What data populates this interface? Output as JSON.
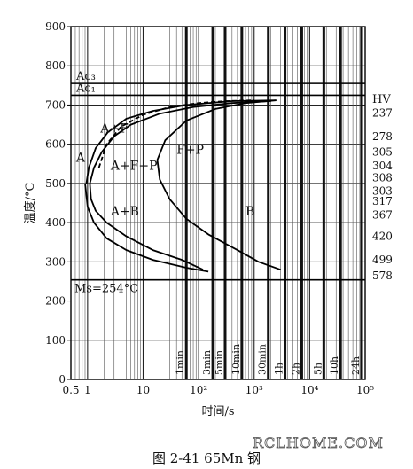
{
  "chart_data": {
    "type": "line",
    "title": "",
    "xlabel": "时间/s",
    "ylabel": "温度/°C",
    "x_scale": "log",
    "xlim": [
      0.5,
      100000
    ],
    "ylim": [
      0,
      900
    ],
    "x_ticks": [
      {
        "value": 0.5,
        "label": "0.5"
      },
      {
        "value": 1,
        "label": "1"
      },
      {
        "value": 10,
        "label": "10"
      },
      {
        "value": 100,
        "label": "10²"
      },
      {
        "value": 1000,
        "label": "10³"
      },
      {
        "value": 10000,
        "label": "10⁴"
      },
      {
        "value": 100000,
        "label": "10⁵"
      }
    ],
    "y_ticks": [
      0,
      100,
      200,
      300,
      400,
      500,
      600,
      700,
      800,
      900
    ],
    "time_markers": [
      {
        "label": "1min",
        "value": 60
      },
      {
        "label": "3min",
        "value": 180
      },
      {
        "label": "5min",
        "value": 300
      },
      {
        "label": "10min",
        "value": 600
      },
      {
        "label": "30min",
        "value": 1800
      },
      {
        "label": "1h",
        "value": 3600
      },
      {
        "label": "2h",
        "value": 7200
      },
      {
        "label": "5h",
        "value": 18000
      },
      {
        "label": "10h",
        "value": 36000
      },
      {
        "label": "24h",
        "value": 86400
      }
    ],
    "horizontal_lines": [
      {
        "label": "Ac₃",
        "value": 755
      },
      {
        "label": "Ac₁",
        "value": 725
      },
      {
        "label": "M_S=254°C",
        "value": 254
      }
    ],
    "hv_scale": {
      "header": "HV",
      "values": [
        {
          "label": "237",
          "y": 680
        },
        {
          "label": "278",
          "y": 620
        },
        {
          "label": "305",
          "y": 580
        },
        {
          "label": "304",
          "y": 545
        },
        {
          "label": "308",
          "y": 515
        },
        {
          "label": "303",
          "y": 480
        },
        {
          "label": "317",
          "y": 455
        },
        {
          "label": "367",
          "y": 420
        },
        {
          "label": "420",
          "y": 365
        },
        {
          "label": "499",
          "y": 305
        },
        {
          "label": "578",
          "y": 265
        }
      ]
    },
    "region_labels": [
      {
        "label": "A",
        "x": 0.62,
        "y": 555
      },
      {
        "label": "A+F",
        "x": 1.7,
        "y": 630
      },
      {
        "label": "A+F+P",
        "x": 2.6,
        "y": 535
      },
      {
        "label": "F+P",
        "x": 40,
        "y": 575
      },
      {
        "label": "A+B",
        "x": 2.6,
        "y": 418
      },
      {
        "label": "B",
        "x": 700,
        "y": 418
      }
    ],
    "series": [
      {
        "style": "dashed",
        "points": [
          [
            1.6,
            540
          ],
          [
            2.2,
            600
          ],
          [
            4,
            645
          ],
          [
            10,
            675
          ],
          [
            30,
            695
          ],
          [
            100,
            705
          ],
          [
            300,
            710
          ],
          [
            1000,
            712
          ]
        ]
      },
      {
        "style": "solid",
        "points": [
          [
            0.95,
            500
          ],
          [
            1.05,
            540
          ],
          [
            1.4,
            590
          ],
          [
            2.3,
            630
          ],
          [
            5,
            665
          ],
          [
            15,
            685
          ],
          [
            60,
            700
          ],
          [
            400,
            710
          ],
          [
            2500,
            712
          ]
        ]
      },
      {
        "style": "solid",
        "points": [
          [
            1.1,
            500
          ],
          [
            1.3,
            540
          ],
          [
            1.8,
            580
          ],
          [
            3,
            620
          ],
          [
            6,
            650
          ],
          [
            20,
            678
          ],
          [
            80,
            695
          ],
          [
            400,
            705
          ],
          [
            2000,
            710
          ]
        ]
      },
      {
        "style": "solid",
        "points": [
          [
            1.1,
            500
          ],
          [
            1.15,
            460
          ],
          [
            1.4,
            430
          ],
          [
            2.2,
            400
          ],
          [
            5,
            365
          ],
          [
            15,
            330
          ],
          [
            50,
            305
          ],
          [
            120,
            280
          ]
        ]
      },
      {
        "style": "solid",
        "points": [
          [
            0.9,
            500
          ],
          [
            1.0,
            440
          ],
          [
            1.3,
            400
          ],
          [
            2.2,
            360
          ],
          [
            5,
            330
          ],
          [
            15,
            305
          ],
          [
            60,
            285
          ],
          [
            150,
            275
          ]
        ]
      },
      {
        "style": "solid",
        "points": [
          [
            2500,
            712
          ],
          [
            700,
            705
          ],
          [
            200,
            690
          ],
          [
            60,
            660
          ],
          [
            25,
            610
          ],
          [
            18,
            560
          ],
          [
            20,
            510
          ],
          [
            30,
            460
          ],
          [
            60,
            410
          ],
          [
            150,
            370
          ],
          [
            500,
            330
          ],
          [
            1200,
            300
          ],
          [
            3000,
            280
          ]
        ]
      }
    ]
  },
  "watermark": "RCLHOME.COM",
  "caption": "图 2-41    65Mn 钢"
}
